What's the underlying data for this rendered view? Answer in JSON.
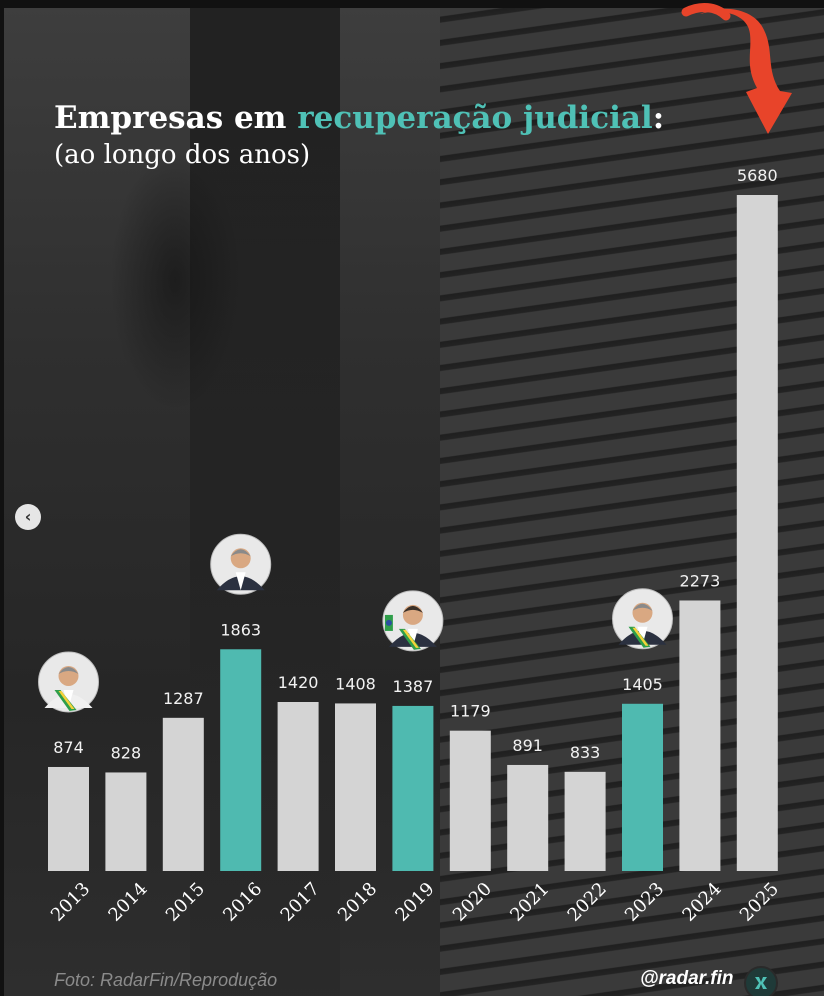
{
  "title": {
    "part1": "Empresas em ",
    "accent": "recuperação judicial",
    "part2": ":"
  },
  "subtitle": "(ao longo dos anos)",
  "footer": {
    "credit": "Foto: RadarFin/Reprodução",
    "handle": "@radar.fin"
  },
  "colors": {
    "bar_default": "#d4d4d4",
    "bar_highlight": "#4fbab0",
    "accent_text": "#4fc1b6",
    "arrow": "#e8442a"
  },
  "icons": {
    "nav_prev": "chevron-left-icon",
    "arrow": "curved-arrow-down-icon",
    "logo": "radar-logo-icon"
  },
  "chart_data": {
    "type": "bar",
    "title": "Empresas em recuperação judicial:",
    "subtitle": "(ao longo dos anos)",
    "xlabel": "",
    "ylabel": "",
    "ylim": [
      0,
      5680
    ],
    "grid": false,
    "legend": "none",
    "categories": [
      "2013",
      "2014",
      "2015",
      "2016",
      "2017",
      "2018",
      "2019",
      "2020",
      "2021",
      "2022",
      "2023",
      "2024",
      "2025"
    ],
    "values": [
      874,
      828,
      1287,
      1863,
      1420,
      1408,
      1387,
      1179,
      891,
      833,
      1405,
      2273,
      5680
    ],
    "highlighted": [
      "2016",
      "2019",
      "2023"
    ],
    "avatars": [
      "2013",
      "2016",
      "2019",
      "2023"
    ]
  }
}
